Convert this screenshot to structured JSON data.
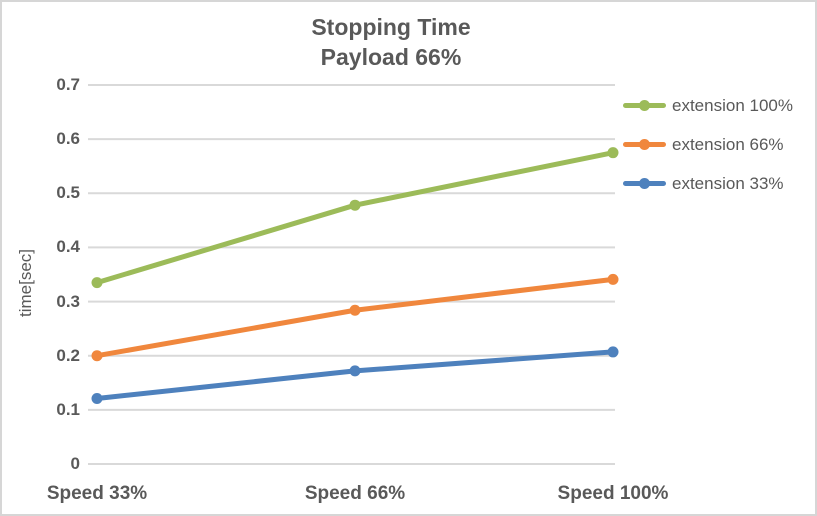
{
  "chart_data": {
    "type": "line",
    "title": "Stopping Time",
    "subtitle": "Payload 66%",
    "categories": [
      "Speed 33%",
      "Speed 66%",
      "Speed 100%"
    ],
    "series": [
      {
        "name": "extension 100%",
        "color": "#9CBB59",
        "values": [
          0.335,
          0.478,
          0.575
        ]
      },
      {
        "name": "extension 66%",
        "color": "#F0873D",
        "values": [
          0.2,
          0.284,
          0.341
        ]
      },
      {
        "name": "extension 33%",
        "color": "#4E81BD",
        "values": [
          0.121,
          0.172,
          0.207
        ]
      }
    ],
    "xlabel": "",
    "ylabel": "time[sec]",
    "ylim": [
      0,
      0.7
    ],
    "ytick_step": 0.1,
    "ytick_labels": [
      "0",
      "0.1",
      "0.2",
      "0.3",
      "0.4",
      "0.5",
      "0.6",
      "0.7"
    ],
    "grid": "horizontal-only",
    "legend_position": "right",
    "marker": "circle",
    "colors": {
      "text": "#595959",
      "gridline": "#D9D9D9",
      "chart_border": "#D6D6D6",
      "background": "#FFFFFF"
    }
  }
}
